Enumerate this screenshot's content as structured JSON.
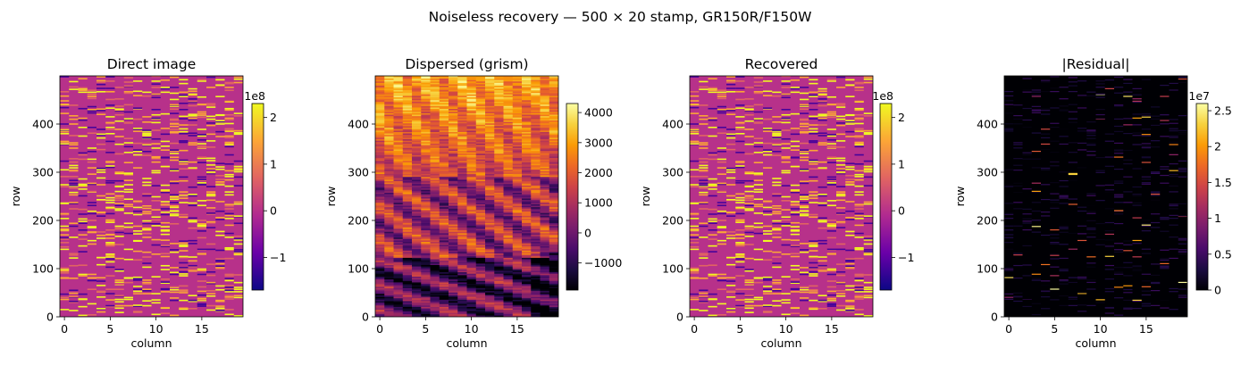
{
  "figure": {
    "title": "Noiseless recovery — 500 × 20 stamp, GR150R/F150W"
  },
  "colormaps": {
    "plasma_like": [
      "#0c0786",
      "#6a00a8",
      "#b12a90",
      "#e16462",
      "#fca636",
      "#f0f921"
    ],
    "inferno": [
      "#000004",
      "#1b0c41",
      "#4a0c6b",
      "#781c6d",
      "#a52c60",
      "#cf4446",
      "#ed6925",
      "#fb9b06",
      "#f7d13d",
      "#fcffa4"
    ]
  },
  "chart_data": [
    {
      "type": "heatmap",
      "title": "Direct image",
      "xlabel": "column",
      "ylabel": "row",
      "shape": [
        500,
        20
      ],
      "xlim": [
        -0.5,
        19.5
      ],
      "ylim": [
        0,
        500
      ],
      "xticks": [
        0,
        5,
        10,
        15
      ],
      "yticks": [
        0,
        100,
        200,
        300,
        400
      ],
      "pattern": "sparse",
      "background_level": 0.0,
      "colorbar": {
        "vmin": -1.7,
        "vmax": 2.3,
        "ticks": [
          -1,
          0,
          1,
          2
        ],
        "offset_label": "1e8"
      }
    },
    {
      "type": "heatmap",
      "title": "Dispersed (grism)",
      "xlabel": "column",
      "ylabel": "row",
      "shape": [
        500,
        20
      ],
      "xlim": [
        -0.5,
        19.5
      ],
      "ylim": [
        0,
        500
      ],
      "xticks": [
        0,
        5,
        10,
        15
      ],
      "yticks": [
        0,
        100,
        200,
        300,
        400
      ],
      "pattern": "dispersed",
      "colorbar": {
        "vmin": -1900,
        "vmax": 4300,
        "ticks": [
          -1000,
          0,
          1000,
          2000,
          3000,
          4000
        ],
        "offset_label": ""
      }
    },
    {
      "type": "heatmap",
      "title": "Recovered",
      "xlabel": "column",
      "ylabel": "row",
      "shape": [
        500,
        20
      ],
      "xlim": [
        -0.5,
        19.5
      ],
      "ylim": [
        0,
        500
      ],
      "xticks": [
        0,
        5,
        10,
        15
      ],
      "yticks": [
        0,
        100,
        200,
        300,
        400
      ],
      "pattern": "sparse",
      "background_level": 0.0,
      "colorbar": {
        "vmin": -1.7,
        "vmax": 2.3,
        "ticks": [
          -1,
          0,
          1,
          2
        ],
        "offset_label": "1e8"
      }
    },
    {
      "type": "heatmap",
      "title": "|Residual|",
      "xlabel": "column",
      "ylabel": "row",
      "shape": [
        500,
        20
      ],
      "xlim": [
        -0.5,
        19.5
      ],
      "ylim": [
        0,
        500
      ],
      "xticks": [
        0,
        5,
        10,
        15
      ],
      "yticks": [
        0,
        100,
        200,
        300,
        400
      ],
      "pattern": "residual",
      "colorbar": {
        "vmin": 0.0,
        "vmax": 2.6,
        "ticks": [
          0.0,
          0.5,
          1.0,
          1.5,
          2.0,
          2.5
        ],
        "offset_label": "1e7"
      }
    }
  ]
}
